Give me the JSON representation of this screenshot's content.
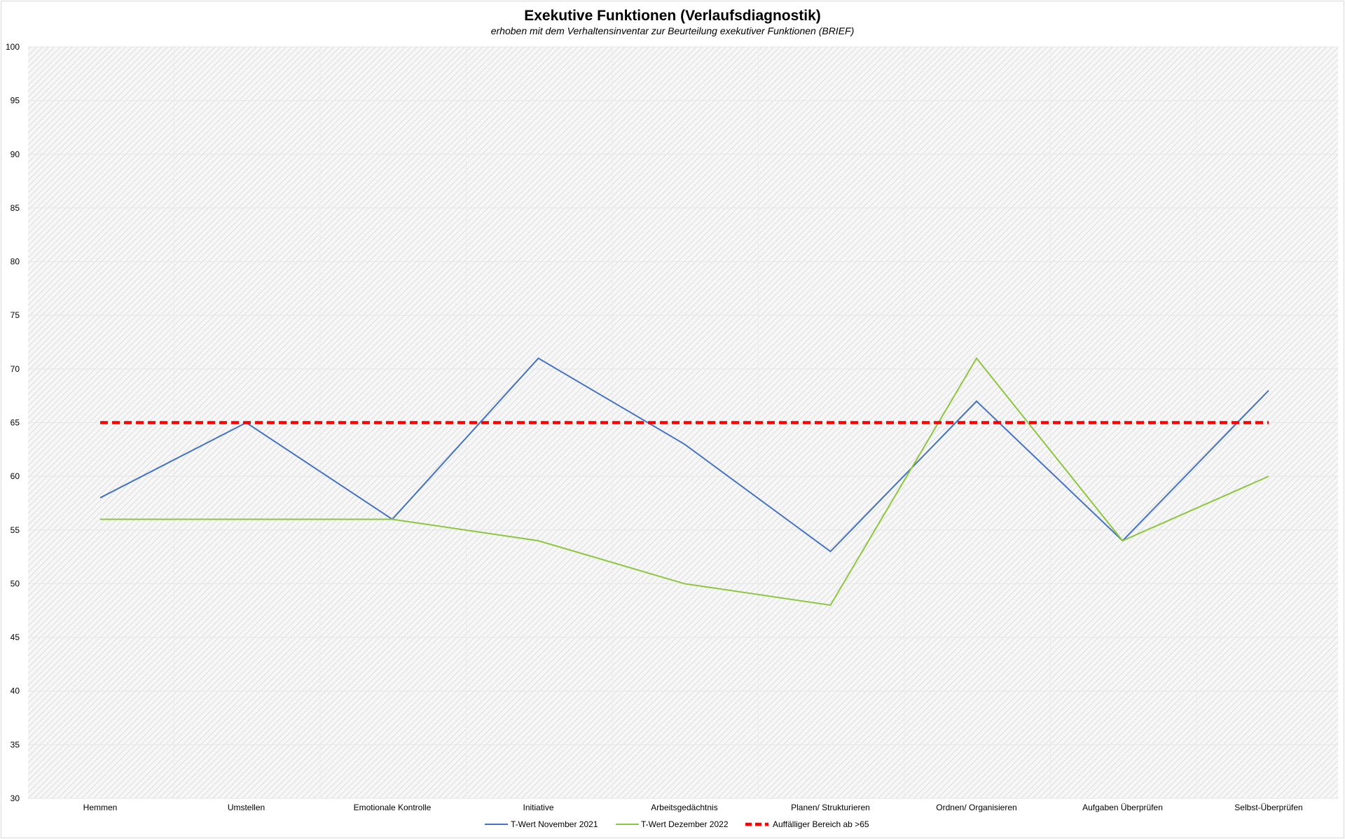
{
  "chart_data": {
    "type": "line",
    "title": "Exekutive Funktionen (Verlaufsdiagnostik)",
    "subtitle": "erhoben mit dem Verhaltensinventar zur Beurteilung exekutiver Funktionen (BRIEF)",
    "xlabel": "",
    "ylabel": "",
    "ylim": [
      30,
      100
    ],
    "y_ticks": [
      30,
      35,
      40,
      45,
      50,
      55,
      60,
      65,
      70,
      75,
      80,
      85,
      90,
      95,
      100
    ],
    "grid": true,
    "legend_position": "bottom",
    "categories": [
      "Hemmen",
      "Umstellen",
      "Emotionale Kontrolle",
      "Initiative",
      "Arbeitsgedächtnis",
      "Planen/ Strukturieren",
      "Ordnen/ Organisieren",
      "Aufgaben Überprüfen",
      "Selbst-Überprüfen"
    ],
    "series": [
      {
        "name": "T-Wert November 2021",
        "color": "#4472c4",
        "dashed": false,
        "values": [
          58,
          65,
          56,
          71,
          63,
          53,
          67,
          54,
          68
        ]
      },
      {
        "name": "T-Wert Dezember 2022",
        "color": "#8dc63f",
        "dashed": false,
        "values": [
          56,
          56,
          56,
          54,
          50,
          48,
          71,
          54,
          60
        ]
      },
      {
        "name": "Auffälliger Bereich ab >65",
        "color": "#ff0000",
        "dashed": true,
        "values": [
          65,
          65,
          65,
          65,
          65,
          65,
          65,
          65,
          65
        ]
      }
    ]
  }
}
